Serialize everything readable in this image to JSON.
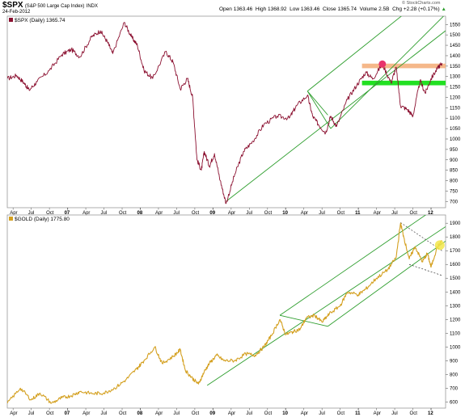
{
  "header": {
    "symbol": "$SPX",
    "name": "(S&P 500 Large Cap Index)",
    "exchange": "INDX",
    "date": "24-Feb-2012",
    "open_label": "Open",
    "open": "1363.46",
    "high_label": "High",
    "high": "1368.92",
    "low_label": "Low",
    "low": "1363.46",
    "close_label": "Close",
    "close": "1365.74",
    "volume_label": "Volume",
    "volume": "2.5B",
    "chg_label": "Chg",
    "chg": "+2.28 (+0.17%)",
    "chg_arrow": "▲",
    "watermark": "© StockCharts.com"
  },
  "colors": {
    "spx": "#8b1030",
    "gold": "#d4a020",
    "channel": "#2e9e2e",
    "resistance": "#f5b88a",
    "support": "#22e022",
    "highlight_dot": "#e8336b",
    "gold_highlight": "#f2e64a"
  },
  "chart_data": [
    {
      "type": "line",
      "legend": "$SPX (Daily) 1365.74",
      "x_tick_labels": [
        "Apr",
        "Jul",
        "Oct",
        "07",
        "Apr",
        "Jul",
        "Oct",
        "08",
        "Apr",
        "Jul",
        "Oct",
        "09",
        "Apr",
        "Jul",
        "Oct",
        "10",
        "Apr",
        "Jul",
        "Oct",
        "11",
        "Apr",
        "Jul",
        "Oct",
        "12"
      ],
      "y_ticks": [
        700,
        750,
        800,
        850,
        900,
        950,
        1000,
        1050,
        1100,
        1150,
        1200,
        1250,
        1300,
        1350,
        1400,
        1450,
        1500,
        1550
      ],
      "ylim": [
        670,
        1590
      ],
      "xlim": [
        2006.17,
        2012.2
      ],
      "series": [
        {
          "values": [
            [
              2006.17,
              1290
            ],
            [
              2006.3,
              1305
            ],
            [
              2006.4,
              1270
            ],
            [
              2006.47,
              1235
            ],
            [
              2006.58,
              1275
            ],
            [
              2006.75,
              1330
            ],
            [
              2006.92,
              1405
            ],
            [
              2007.05,
              1430
            ],
            [
              2007.17,
              1395
            ],
            [
              2007.33,
              1490
            ],
            [
              2007.45,
              1520
            ],
            [
              2007.55,
              1465
            ],
            [
              2007.62,
              1410
            ],
            [
              2007.78,
              1560
            ],
            [
              2007.88,
              1490
            ],
            [
              2007.96,
              1450
            ],
            [
              2008.05,
              1330
            ],
            [
              2008.17,
              1290
            ],
            [
              2008.35,
              1420
            ],
            [
              2008.45,
              1370
            ],
            [
              2008.55,
              1240
            ],
            [
              2008.65,
              1290
            ],
            [
              2008.72,
              1200
            ],
            [
              2008.78,
              900
            ],
            [
              2008.84,
              850
            ],
            [
              2008.88,
              940
            ],
            [
              2008.95,
              870
            ],
            [
              2009.02,
              930
            ],
            [
              2009.1,
              800
            ],
            [
              2009.18,
              690
            ],
            [
              2009.3,
              830
            ],
            [
              2009.42,
              940
            ],
            [
              2009.55,
              990
            ],
            [
              2009.7,
              1070
            ],
            [
              2009.88,
              1110
            ],
            [
              2010.05,
              1100
            ],
            [
              2010.15,
              1160
            ],
            [
              2010.3,
              1210
            ],
            [
              2010.37,
              1110
            ],
            [
              2010.45,
              1070
            ],
            [
              2010.55,
              1030
            ],
            [
              2010.62,
              1110
            ],
            [
              2010.7,
              1060
            ],
            [
              2010.85,
              1190
            ],
            [
              2010.98,
              1260
            ],
            [
              2011.1,
              1320
            ],
            [
              2011.2,
              1290
            ],
            [
              2011.33,
              1360
            ],
            [
              2011.45,
              1270
            ],
            [
              2011.52,
              1345
            ],
            [
              2011.58,
              1160
            ],
            [
              2011.68,
              1140
            ],
            [
              2011.75,
              1110
            ],
            [
              2011.85,
              1280
            ],
            [
              2011.92,
              1220
            ],
            [
              2012.0,
              1290
            ],
            [
              2012.1,
              1345
            ],
            [
              2012.15,
              1365
            ]
          ]
        }
      ],
      "annotations": {
        "channel_lower": [
          [
            2009.18,
            700
          ],
          [
            2012.2,
            1520
          ]
        ],
        "channel_upper": [
          [
            2010.3,
            1230
          ],
          [
            2012.2,
            1760
          ]
        ],
        "channel_mid": [
          [
            2010.62,
            1050
          ],
          [
            2012.2,
            1600
          ]
        ],
        "wedge_1": [
          [
            2010.3,
            1230
          ],
          [
            2010.62,
            1050
          ]
        ],
        "wedge_2": [
          [
            2010.3,
            1230
          ],
          [
            2010.58,
            1115
          ]
        ],
        "resistance_band": [
          [
            2011.05,
            2012.2
          ],
          [
            1340,
            1362
          ]
        ],
        "support_band": [
          [
            2011.05,
            2012.2
          ],
          [
            1258,
            1280
          ]
        ],
        "marker": [
          2011.33,
          1360
        ]
      }
    },
    {
      "type": "line",
      "legend": "$GOLD (Daily) 1775.80",
      "x_tick_labels": [
        "Apr",
        "Jul",
        "Oct",
        "07",
        "Apr",
        "Jul",
        "Oct",
        "08",
        "Apr",
        "Jul",
        "Oct",
        "09",
        "Apr",
        "Jul",
        "Oct",
        "10",
        "Apr",
        "Jul",
        "Oct",
        "11",
        "Apr",
        "Jul",
        "Oct",
        "12"
      ],
      "y_ticks": [
        600,
        700,
        800,
        900,
        1000,
        1100,
        1200,
        1300,
        1400,
        1500,
        1600,
        1700,
        1800,
        1900
      ],
      "ylim": [
        555,
        1960
      ],
      "xlim": [
        2006.17,
        2012.2
      ],
      "series": [
        {
          "values": [
            [
              2006.17,
              590
            ],
            [
              2006.35,
              700
            ],
            [
              2006.5,
              615
            ],
            [
              2006.62,
              665
            ],
            [
              2006.78,
              590
            ],
            [
              2006.92,
              630
            ],
            [
              2007.05,
              645
            ],
            [
              2007.17,
              675
            ],
            [
              2007.35,
              660
            ],
            [
              2007.5,
              665
            ],
            [
              2007.65,
              700
            ],
            [
              2007.8,
              760
            ],
            [
              2007.95,
              840
            ],
            [
              2008.05,
              900
            ],
            [
              2008.2,
              1000
            ],
            [
              2008.3,
              880
            ],
            [
              2008.45,
              930
            ],
            [
              2008.55,
              980
            ],
            [
              2008.62,
              830
            ],
            [
              2008.72,
              770
            ],
            [
              2008.8,
              730
            ],
            [
              2008.88,
              820
            ],
            [
              2008.95,
              880
            ],
            [
              2009.05,
              940
            ],
            [
              2009.15,
              900
            ],
            [
              2009.3,
              900
            ],
            [
              2009.45,
              950
            ],
            [
              2009.58,
              940
            ],
            [
              2009.7,
              1000
            ],
            [
              2009.8,
              1080
            ],
            [
              2009.92,
              1200
            ],
            [
              2010.0,
              1090
            ],
            [
              2010.1,
              1110
            ],
            [
              2010.2,
              1130
            ],
            [
              2010.28,
              1210
            ],
            [
              2010.4,
              1230
            ],
            [
              2010.5,
              1180
            ],
            [
              2010.6,
              1240
            ],
            [
              2010.75,
              1300
            ],
            [
              2010.85,
              1400
            ],
            [
              2011.0,
              1380
            ],
            [
              2011.1,
              1420
            ],
            [
              2011.25,
              1500
            ],
            [
              2011.4,
              1560
            ],
            [
              2011.52,
              1650
            ],
            [
              2011.58,
              1900
            ],
            [
              2011.62,
              1810
            ],
            [
              2011.7,
              1640
            ],
            [
              2011.78,
              1730
            ],
            [
              2011.88,
              1620
            ],
            [
              2011.95,
              1680
            ],
            [
              2012.0,
              1580
            ],
            [
              2012.08,
              1720
            ],
            [
              2012.15,
              1775
            ]
          ]
        }
      ],
      "annotations": {
        "channel_lower": [
          [
            2008.92,
            720
          ],
          [
            2012.2,
            1875
          ]
        ],
        "channel_upper": [
          [
            2009.92,
            1230
          ],
          [
            2012.2,
            2060
          ]
        ],
        "channel_mid": [
          [
            2010.58,
            1150
          ],
          [
            2012.2,
            1770
          ]
        ],
        "wedge_1": [
          [
            2009.92,
            1230
          ],
          [
            2010.58,
            1150
          ]
        ],
        "dashed_top": [
          [
            2011.58,
            1905
          ],
          [
            2012.15,
            1700
          ]
        ],
        "dashed_bottom": [
          [
            2011.7,
            1600
          ],
          [
            2012.15,
            1520
          ]
        ],
        "highlight": [
          2012.12,
          1740
        ]
      }
    }
  ]
}
